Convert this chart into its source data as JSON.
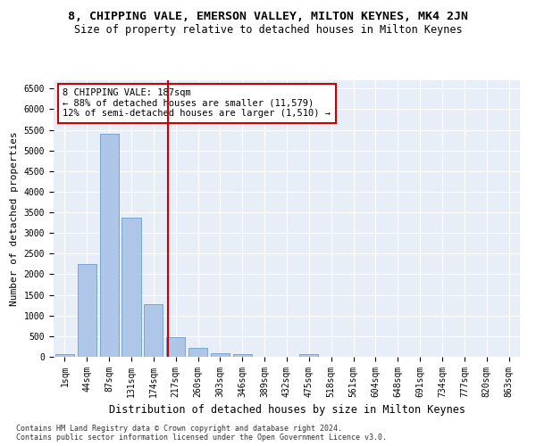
{
  "title1": "8, CHIPPING VALE, EMERSON VALLEY, MILTON KEYNES, MK4 2JN",
  "title2": "Size of property relative to detached houses in Milton Keynes",
  "xlabel": "Distribution of detached houses by size in Milton Keynes",
  "ylabel": "Number of detached properties",
  "footnote": "Contains HM Land Registry data © Crown copyright and database right 2024.\nContains public sector information licensed under the Open Government Licence v3.0.",
  "bar_labels": [
    "1sqm",
    "44sqm",
    "87sqm",
    "131sqm",
    "174sqm",
    "217sqm",
    "260sqm",
    "303sqm",
    "346sqm",
    "389sqm",
    "432sqm",
    "475sqm",
    "518sqm",
    "561sqm",
    "604sqm",
    "648sqm",
    "691sqm",
    "734sqm",
    "777sqm",
    "820sqm",
    "863sqm"
  ],
  "bar_values": [
    70,
    2250,
    5400,
    3380,
    1270,
    470,
    215,
    95,
    60,
    0,
    0,
    60,
    0,
    0,
    0,
    0,
    0,
    0,
    0,
    0,
    0
  ],
  "bar_color": "#aec6e8",
  "bar_edge_color": "#5a8fc2",
  "vline_x": 4.65,
  "vline_color": "#cc0000",
  "annotation_text": "8 CHIPPING VALE: 187sqm\n← 88% of detached houses are smaller (11,579)\n12% of semi-detached houses are larger (1,510) →",
  "annotation_box_color": "#ffffff",
  "annotation_box_edge_color": "#cc0000",
  "ylim": [
    0,
    6700
  ],
  "yticks": [
    0,
    500,
    1000,
    1500,
    2000,
    2500,
    3000,
    3500,
    4000,
    4500,
    5000,
    5500,
    6000,
    6500
  ],
  "bg_color": "#e8eef8",
  "fig_bg_color": "#ffffff",
  "title1_fontsize": 9.5,
  "title2_fontsize": 8.5,
  "xlabel_fontsize": 8.5,
  "ylabel_fontsize": 8,
  "tick_fontsize": 7,
  "annotation_fontsize": 7.5,
  "footnote_fontsize": 6
}
